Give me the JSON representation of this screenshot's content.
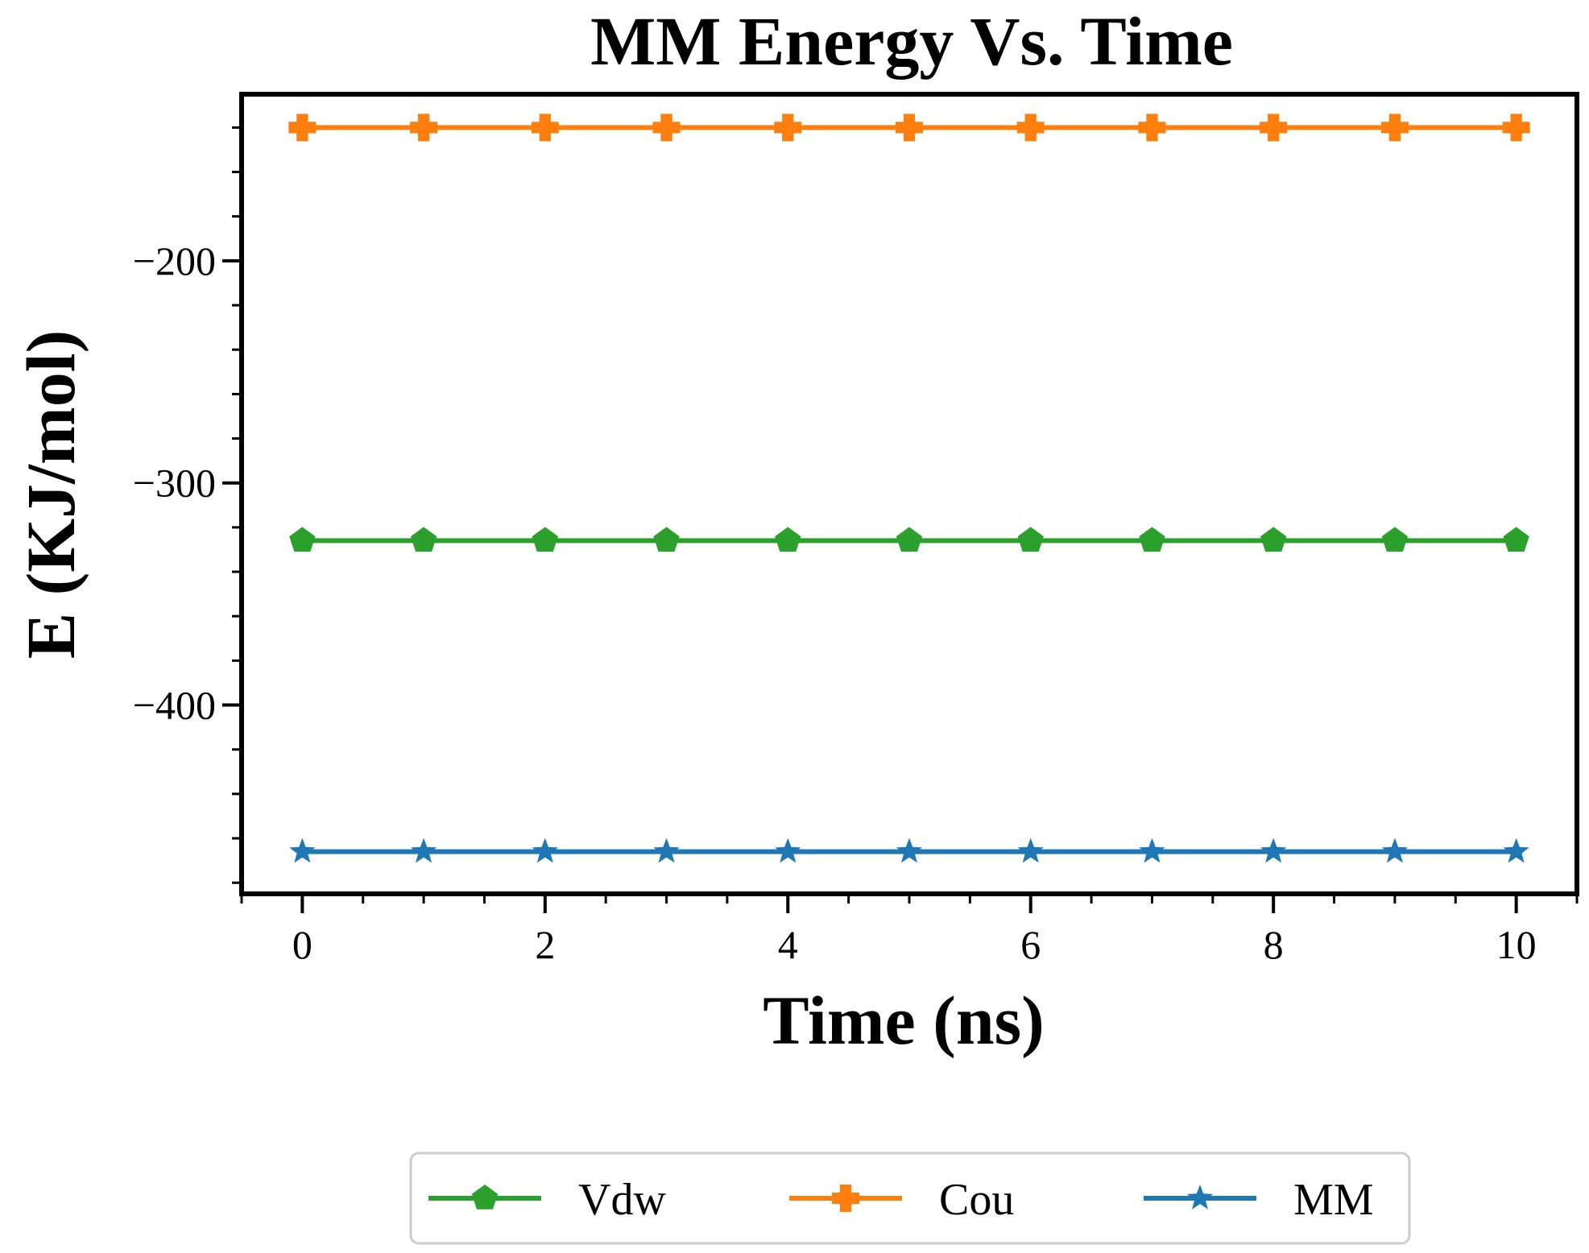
{
  "chart_data": {
    "type": "line",
    "title": "MM Energy Vs. Time",
    "xlabel": "Time (ns)",
    "ylabel": "E (KJ/mol)",
    "x": [
      0,
      1,
      2,
      3,
      4,
      5,
      6,
      7,
      8,
      9,
      10
    ],
    "xlim": [
      -0.5,
      10.5
    ],
    "ylim": [
      -485,
      -125
    ],
    "xticks": [
      0,
      2,
      4,
      6,
      8,
      10
    ],
    "xtick_labels": [
      "0",
      "2",
      "4",
      "6",
      "8",
      "10"
    ],
    "yticks": [
      -200,
      -300,
      -400
    ],
    "ytick_labels": [
      "−200",
      "−300",
      "−400"
    ],
    "grid": false,
    "legend_position": "bottom-center, below plot",
    "series": [
      {
        "name": "Vdw",
        "color": "#2ca02c",
        "marker": "pentagon",
        "values": [
          -326,
          -326,
          -326,
          -326,
          -326,
          -326,
          -326,
          -326,
          -326,
          -326,
          -326
        ]
      },
      {
        "name": "Cou",
        "color": "#ff7f0e",
        "marker": "plus-filled",
        "values": [
          -140,
          -140,
          -140,
          -140,
          -140,
          -140,
          -140,
          -140,
          -140,
          -140,
          -140
        ]
      },
      {
        "name": "MM",
        "color": "#1f77b4",
        "marker": "star",
        "values": [
          -466,
          -466,
          -466,
          -466,
          -466,
          -466,
          -466,
          -466,
          -466,
          -466,
          -466
        ]
      }
    ]
  }
}
